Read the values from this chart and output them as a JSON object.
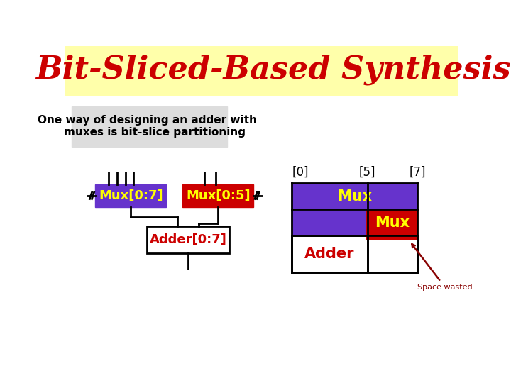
{
  "title": "Bit-Sliced-Based Synthesis",
  "title_color": "#cc0000",
  "title_bg": "#ffffaa",
  "subtitle": "One way of designing an adder with\n    muxes is bit-slice partitioning",
  "subtitle_bg": "#dddddd",
  "bg_color": "#ffffff",
  "mux07_label": "Mux[0:7]",
  "mux05_label": "Mux[0:5]",
  "adder_label": "Adder[0:7]",
  "box_label_color": "#ffff00",
  "adder_label_color": "#cc0000",
  "mux07_color": "#6633cc",
  "mux05_color": "#cc0000",
  "adder_box_color": "#ffffff",
  "space_wasted_color": "#880000",
  "right_mux_blue_color": "#6633cc",
  "right_mux_red_color": "#cc0000",
  "right_adder_color": "#ffffff",
  "black": "#000000"
}
